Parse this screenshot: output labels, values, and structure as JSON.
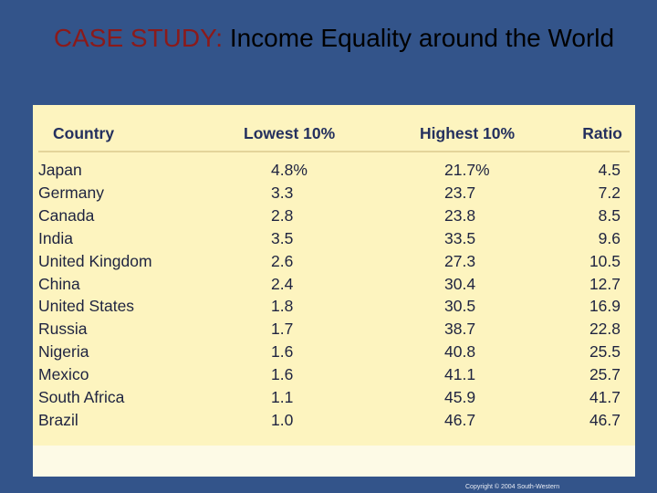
{
  "title": {
    "label": "CASE STUDY:",
    "text": "Income Equality around the World"
  },
  "table": {
    "header": [
      "Country",
      "Lowest 10%",
      "Highest 10%",
      "Ratio"
    ],
    "rows": [
      [
        "Japan",
        "4.8%",
        "21.7%",
        "4.5"
      ],
      [
        "Germany",
        "3.3",
        "23.7",
        "7.2"
      ],
      [
        "Canada",
        "2.8",
        "23.8",
        "8.5"
      ],
      [
        "India",
        "3.5",
        "33.5",
        "9.6"
      ],
      [
        "United Kingdom",
        "2.6",
        "27.3",
        "10.5"
      ],
      [
        "China",
        "2.4",
        "30.4",
        "12.7"
      ],
      [
        "United States",
        "1.8",
        "30.5",
        "16.9"
      ],
      [
        "Russia",
        "1.7",
        "38.7",
        "22.8"
      ],
      [
        "Nigeria",
        "1.6",
        "40.8",
        "25.5"
      ],
      [
        "Mexico",
        "1.6",
        "41.1",
        "25.7"
      ],
      [
        "South Africa",
        "1.1",
        "45.9",
        "41.7"
      ],
      [
        "Brazil",
        "1.0",
        "46.7",
        "46.7"
      ]
    ]
  },
  "footer": {
    "copyright": "Copyright © 2004 South-Western"
  }
}
